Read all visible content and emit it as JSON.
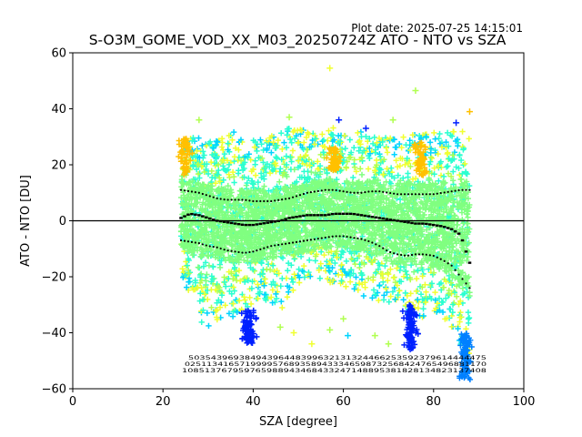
{
  "header": {
    "plot_date": "Plot date: 2025-07-25 14:15:01",
    "title": "S-O3M_GOME_VOD_XX_M03_20250724Z ATO - NTO vs SZA"
  },
  "chart_data": {
    "type": "scatter",
    "title": "S-O3M_GOME_VOD_XX_M03_20250724Z ATO - NTO vs SZA",
    "xlabel": "SZA [degree]",
    "ylabel": "ATO - NTO [DU]",
    "xlim": [
      0,
      100
    ],
    "ylim": [
      -60,
      60
    ],
    "xticks": [
      "0",
      "20",
      "40",
      "60",
      "80",
      "100"
    ],
    "yticks": [
      "−60",
      "−40",
      "−20",
      "0",
      "20",
      "40",
      "60"
    ],
    "grid": false,
    "reference_line_y": 0,
    "colors": {
      "core": "#80ff80",
      "aqua": "#2bffd0",
      "cyan": "#00d4ff",
      "yellow": "#f0ff30",
      "orange": "#ffc000",
      "blue": "#0020ff",
      "midblue": "#0080ff",
      "lime": "#b0ff50",
      "median": "#000000"
    },
    "scatter_envelope": {
      "sza": [
        24,
        26,
        28,
        30,
        32,
        34,
        36,
        38,
        40,
        42,
        44,
        46,
        48,
        50,
        52,
        54,
        56,
        58,
        60,
        62,
        64,
        66,
        68,
        70,
        72,
        74,
        76,
        78,
        80,
        82,
        84,
        86,
        88
      ],
      "upper": [
        28,
        30,
        30,
        28,
        29,
        31,
        32,
        30,
        29,
        30,
        31,
        31,
        34,
        33,
        32,
        31,
        33,
        34,
        32,
        31,
        32,
        31,
        30,
        31,
        30,
        30,
        31,
        31,
        32,
        31,
        32,
        33,
        33
      ],
      "lower": [
        -18,
        -28,
        -35,
        -40,
        -38,
        -35,
        -34,
        -33,
        -30,
        -28,
        -30,
        -33,
        -28,
        -24,
        -22,
        -20,
        -22,
        -22,
        -23,
        -26,
        -27,
        -28,
        -29,
        -30,
        -31,
        -34,
        -36,
        -34,
        -32,
        -35,
        -38,
        -44,
        -50
      ]
    },
    "median": {
      "sza": [
        24,
        26,
        28,
        30,
        32,
        34,
        36,
        38,
        40,
        42,
        44,
        46,
        48,
        50,
        52,
        54,
        56,
        58,
        60,
        62,
        64,
        66,
        68,
        70,
        72,
        74,
        76,
        78,
        80,
        82,
        84,
        86,
        88
      ],
      "y": [
        1,
        2.5,
        2,
        1,
        0,
        -0.5,
        -1,
        -1.5,
        -1.5,
        -1,
        -0.5,
        0,
        1,
        1.5,
        2,
        2,
        2,
        2.5,
        2.5,
        2.5,
        2,
        1.5,
        1,
        0.5,
        0,
        -0.5,
        -1,
        -1,
        -1.5,
        -2,
        -3,
        -5,
        -15
      ]
    },
    "upper_spread": {
      "sza": [
        24,
        26,
        28,
        30,
        32,
        34,
        36,
        38,
        40,
        42,
        44,
        46,
        48,
        50,
        52,
        54,
        56,
        58,
        60,
        62,
        64,
        66,
        68,
        70,
        72,
        74,
        76,
        78,
        80,
        82,
        84,
        86,
        88
      ],
      "y": [
        11,
        10.5,
        10,
        9,
        8,
        7.5,
        7.5,
        7.5,
        7,
        7,
        7,
        7.5,
        8,
        9,
        10,
        10.5,
        11,
        11,
        10.5,
        10,
        10,
        10.5,
        10.5,
        10,
        9.5,
        9.5,
        9.5,
        9.5,
        9.5,
        10,
        10.5,
        11,
        11
      ]
    },
    "lower_spread": {
      "sza": [
        24,
        26,
        28,
        30,
        32,
        34,
        36,
        38,
        40,
        42,
        44,
        46,
        48,
        50,
        52,
        54,
        56,
        58,
        60,
        62,
        64,
        66,
        68,
        70,
        72,
        74,
        76,
        78,
        80,
        82,
        84,
        86,
        88
      ],
      "y": [
        -7,
        -7.5,
        -8,
        -9,
        -9.5,
        -10.5,
        -11,
        -11.5,
        -11,
        -10,
        -9,
        -8.5,
        -8,
        -7.5,
        -7,
        -6.5,
        -6,
        -5.5,
        -5.5,
        -6,
        -6.5,
        -7.5,
        -9,
        -11,
        -12,
        -12.5,
        -12,
        -12,
        -12.5,
        -14,
        -16,
        -20,
        -24
      ]
    },
    "outlier_clusters": [
      {
        "sza": 39,
        "y_from": -44,
        "y_to": -32,
        "color": "blue"
      },
      {
        "sza": 75,
        "y_from": -46,
        "y_to": -30,
        "color": "blue"
      },
      {
        "sza": 87,
        "y_from": -57,
        "y_to": -40,
        "color": "midblue"
      },
      {
        "sza": 25,
        "y_from": 16,
        "y_to": 30,
        "color": "orange"
      },
      {
        "sza": 77,
        "y_from": 16,
        "y_to": 28,
        "color": "orange"
      },
      {
        "sza": 58,
        "y_from": 18,
        "y_to": 26,
        "color": "orange"
      }
    ],
    "isolated_points": [
      {
        "sza": 57,
        "y": 54.5,
        "color": "yellow"
      },
      {
        "sza": 76,
        "y": 46.5,
        "color": "lime"
      },
      {
        "sza": 59,
        "y": 36,
        "color": "blue"
      },
      {
        "sza": 65,
        "y": 33,
        "color": "blue"
      },
      {
        "sza": 85,
        "y": 35,
        "color": "blue"
      },
      {
        "sza": 88,
        "y": 39,
        "color": "orange"
      },
      {
        "sza": 28,
        "y": 36,
        "color": "lime"
      },
      {
        "sza": 48,
        "y": 37,
        "color": "lime"
      },
      {
        "sza": 71,
        "y": 36,
        "color": "lime"
      },
      {
        "sza": 46,
        "y": -38,
        "color": "lime"
      },
      {
        "sza": 49,
        "y": -40,
        "color": "yellow"
      },
      {
        "sza": 53,
        "y": -44,
        "color": "yellow"
      },
      {
        "sza": 57,
        "y": -39,
        "color": "lime"
      },
      {
        "sza": 60,
        "y": -35,
        "color": "lime"
      },
      {
        "sza": 61,
        "y": -41,
        "color": "cyan"
      },
      {
        "sza": 67,
        "y": -41,
        "color": "lime"
      },
      {
        "sza": 70,
        "y": -44,
        "color": "lime"
      }
    ],
    "bin_counts": {
      "rows": [
        "50354396938494396448399632131324466253592379614444475",
        "0251134165719999576893589433346598732568424765496881170",
        "108513767959765988943468433247148895381828134823137408"
      ]
    }
  }
}
